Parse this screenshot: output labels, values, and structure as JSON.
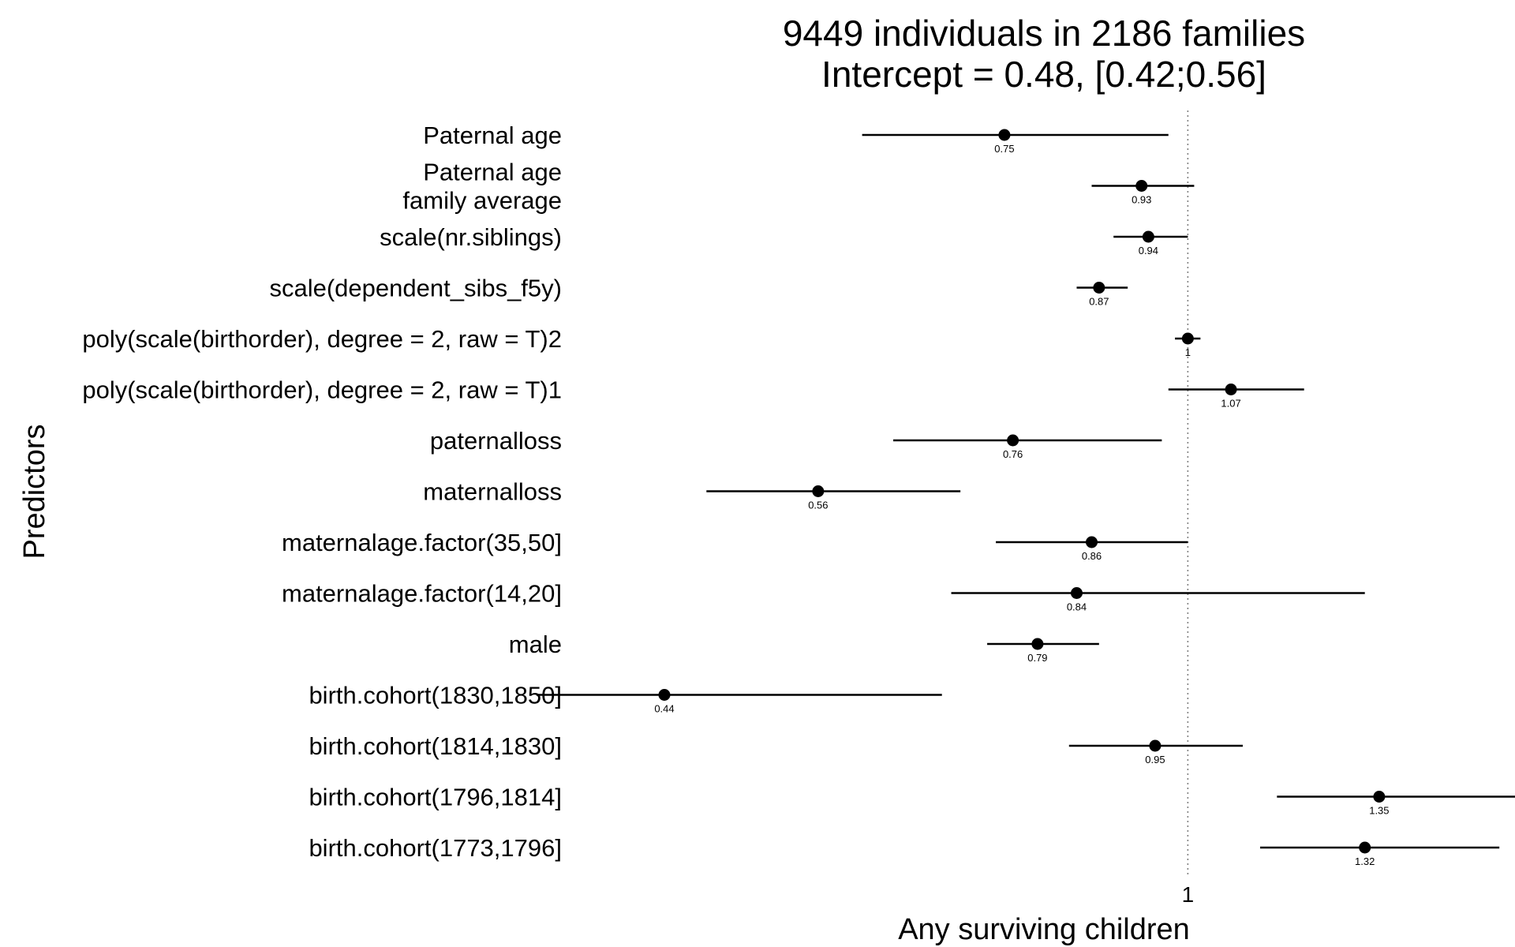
{
  "chart_data": {
    "type": "forest",
    "title_lines": [
      "9449 individuals in 2186 families",
      "Intercept = 0.48, [0.42;0.56]"
    ],
    "xlabel": "Any surviving children",
    "ylabel": "Predictors",
    "x_scale": "log",
    "x_ticks": [
      "1"
    ],
    "reference_line": 1,
    "xlim": [
      0.405,
      1.58
    ],
    "grid": false,
    "colors": {
      "points": "#000000",
      "lines": "#000000",
      "reference": "#808080"
    },
    "predictors": [
      {
        "label_lines": [
          "Paternal age"
        ],
        "estimate": 0.75,
        "estimate_label": "0.75",
        "ci": [
          0.6,
          0.97
        ]
      },
      {
        "label_lines": [
          "Paternal age",
          "family average"
        ],
        "estimate": 0.93,
        "estimate_label": "0.93",
        "ci": [
          0.86,
          1.01
        ]
      },
      {
        "label_lines": [
          "scale(nr.siblings)"
        ],
        "estimate": 0.94,
        "estimate_label": "0.94",
        "ci": [
          0.89,
          1.0
        ]
      },
      {
        "label_lines": [
          "scale(dependent_sibs_f5y)"
        ],
        "estimate": 0.87,
        "estimate_label": "0.87",
        "ci": [
          0.84,
          0.91
        ]
      },
      {
        "label_lines": [
          "poly(scale(birthorder), degree = 2, raw = T)2"
        ],
        "estimate": 1.0,
        "estimate_label": "1",
        "ci": [
          0.98,
          1.02
        ]
      },
      {
        "label_lines": [
          "poly(scale(birthorder), degree = 2, raw = T)1"
        ],
        "estimate": 1.07,
        "estimate_label": "1.07",
        "ci": [
          0.97,
          1.2
        ]
      },
      {
        "label_lines": [
          "paternalloss"
        ],
        "estimate": 0.76,
        "estimate_label": "0.76",
        "ci": [
          0.63,
          0.96
        ]
      },
      {
        "label_lines": [
          "maternalloss"
        ],
        "estimate": 0.56,
        "estimate_label": "0.56",
        "ci": [
          0.47,
          0.7
        ]
      },
      {
        "label_lines": [
          "maternalage.factor(35,50]"
        ],
        "estimate": 0.86,
        "estimate_label": "0.86",
        "ci": [
          0.74,
          1.0
        ]
      },
      {
        "label_lines": [
          "maternalage.factor(14,20]"
        ],
        "estimate": 0.84,
        "estimate_label": "0.84",
        "ci": [
          0.69,
          1.32
        ]
      },
      {
        "label_lines": [
          "male"
        ],
        "estimate": 0.79,
        "estimate_label": "0.79",
        "ci": [
          0.73,
          0.87
        ]
      },
      {
        "label_lines": [
          "birth.cohort(1830,1850]"
        ],
        "estimate": 0.44,
        "estimate_label": "0.44",
        "ci": [
          0.36,
          0.68
        ]
      },
      {
        "label_lines": [
          "birth.cohort(1814,1830]"
        ],
        "estimate": 0.95,
        "estimate_label": "0.95",
        "ci": [
          0.83,
          1.09
        ]
      },
      {
        "label_lines": [
          "birth.cohort(1796,1814]"
        ],
        "estimate": 1.35,
        "estimate_label": "1.35",
        "ci": [
          1.15,
          1.68
        ]
      },
      {
        "label_lines": [
          "birth.cohort(1773,1796]"
        ],
        "estimate": 1.32,
        "estimate_label": "1.32",
        "ci": [
          1.12,
          1.63
        ]
      }
    ]
  }
}
